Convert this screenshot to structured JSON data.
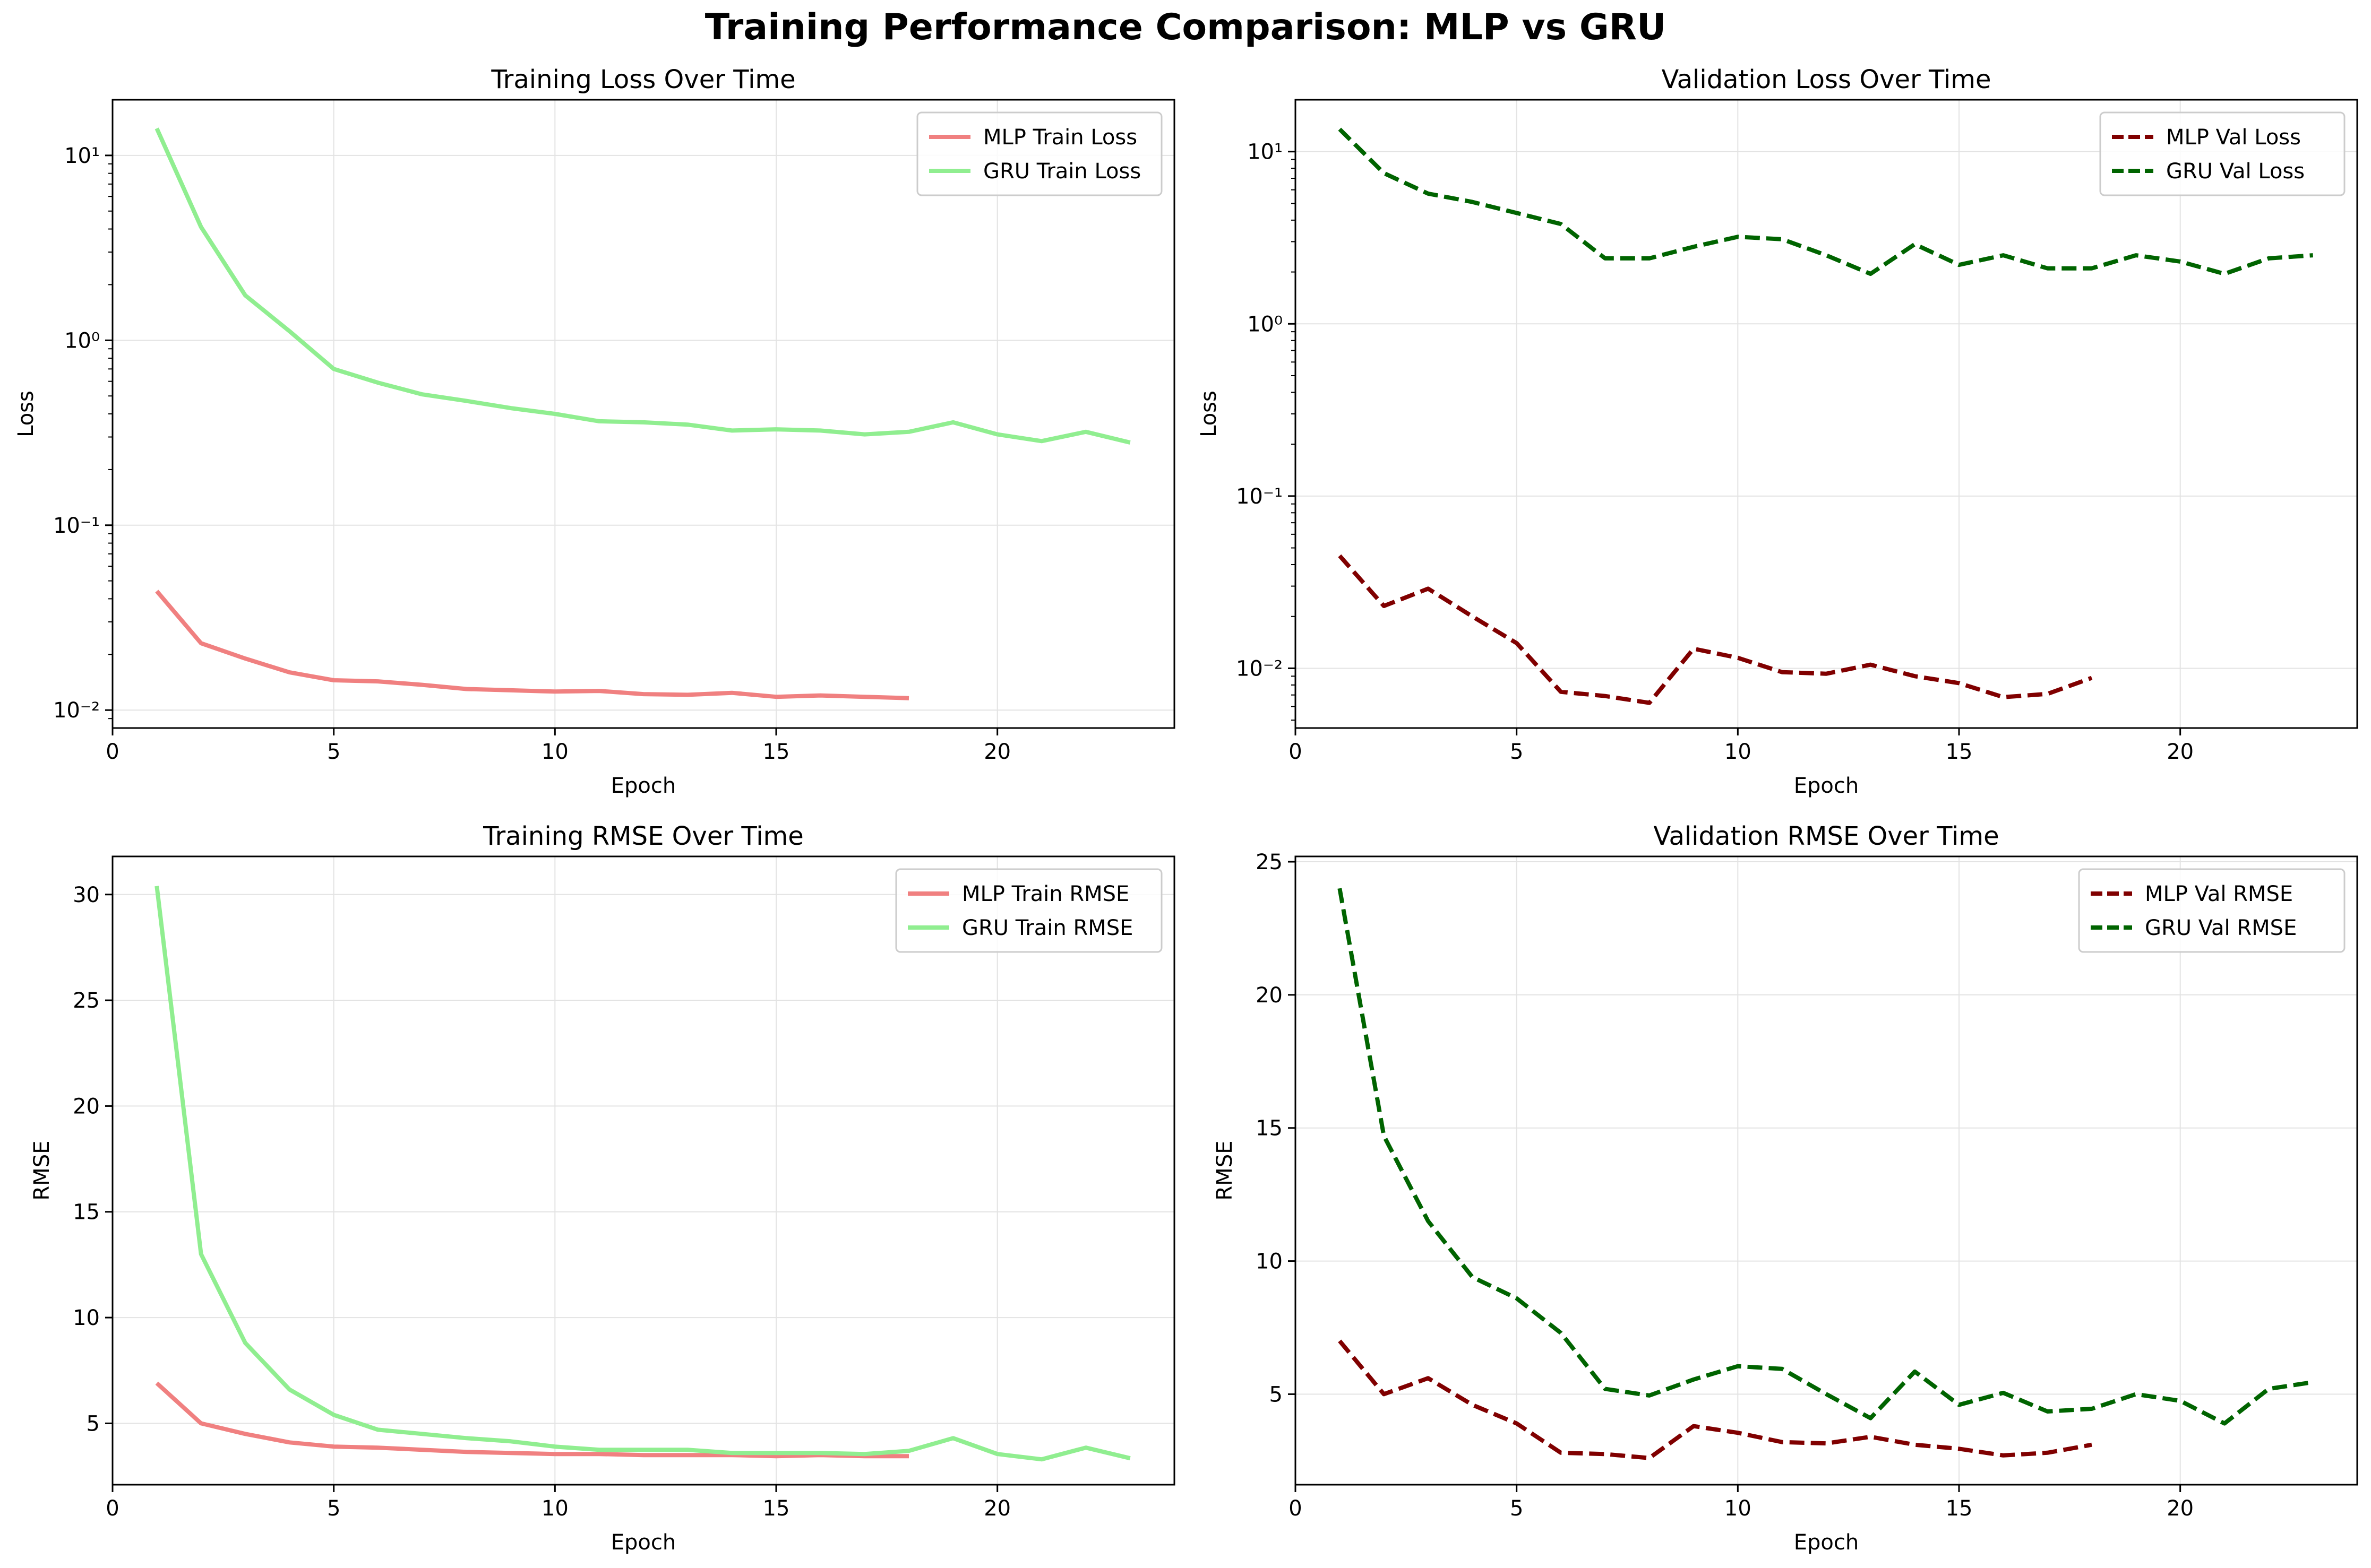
{
  "figure": {
    "suptitle": "Training Performance Comparison: MLP vs GRU",
    "colors": {
      "mlp_train": "#f08080",
      "gru_train": "#90ee90",
      "mlp_val": "#800000",
      "gru_val": "#006400",
      "grid": "#e6e6e6"
    }
  },
  "chart_data": [
    {
      "type": "line",
      "title": "Training Loss Over Time",
      "xlabel": "Epoch",
      "ylabel": "Loss",
      "yscale": "log",
      "xlim": [
        0,
        24
      ],
      "ylim": [
        0.008,
        20
      ],
      "xticks": [
        0,
        5,
        10,
        15,
        20
      ],
      "yticks": [
        0.01,
        0.1,
        1,
        10
      ],
      "ytick_labels": [
        "10⁻²",
        "10⁻¹",
        "10⁰",
        "10¹"
      ],
      "grid": true,
      "legend": "top-right",
      "series": [
        {
          "name": "MLP Train Loss",
          "color": "#f08080",
          "style": "solid",
          "x": [
            1,
            2,
            3,
            4,
            5,
            6,
            7,
            8,
            9,
            10,
            11,
            12,
            13,
            14,
            15,
            16,
            17,
            18
          ],
          "y": [
            0.044,
            0.023,
            0.019,
            0.016,
            0.0145,
            0.0143,
            0.0137,
            0.013,
            0.0128,
            0.0126,
            0.0127,
            0.0122,
            0.0121,
            0.0124,
            0.0118,
            0.012,
            0.0118,
            0.0116
          ]
        },
        {
          "name": "GRU Train Loss",
          "color": "#90ee90",
          "style": "solid",
          "x": [
            1,
            2,
            3,
            4,
            5,
            6,
            7,
            8,
            9,
            10,
            11,
            12,
            13,
            14,
            15,
            16,
            17,
            18,
            19,
            20,
            21,
            22,
            23
          ],
          "y": [
            14,
            4.1,
            1.75,
            1.12,
            0.7,
            0.59,
            0.51,
            0.47,
            0.43,
            0.4,
            0.365,
            0.36,
            0.35,
            0.325,
            0.33,
            0.325,
            0.31,
            0.32,
            0.36,
            0.31,
            0.285,
            0.32,
            0.28
          ]
        }
      ]
    },
    {
      "type": "line",
      "title": "Validation Loss Over Time",
      "xlabel": "Epoch",
      "ylabel": "Loss",
      "yscale": "log",
      "xlim": [
        0,
        24
      ],
      "ylim": [
        0.0045,
        20
      ],
      "xticks": [
        0,
        5,
        10,
        15,
        20
      ],
      "yticks": [
        0.01,
        0.1,
        1,
        10
      ],
      "ytick_labels": [
        "10⁻²",
        "10⁻¹",
        "10⁰",
        "10¹"
      ],
      "grid": true,
      "legend": "top-right",
      "series": [
        {
          "name": "MLP Val Loss",
          "color": "#800000",
          "style": "dashed",
          "x": [
            1,
            2,
            3,
            4,
            5,
            6,
            7,
            8,
            9,
            10,
            11,
            12,
            13,
            14,
            15,
            16,
            17,
            18
          ],
          "y": [
            0.045,
            0.023,
            0.029,
            0.02,
            0.014,
            0.0073,
            0.0069,
            0.0063,
            0.013,
            0.0115,
            0.0095,
            0.0093,
            0.0105,
            0.009,
            0.0082,
            0.0068,
            0.0071,
            0.0088
          ]
        },
        {
          "name": "GRU Val Loss",
          "color": "#006400",
          "style": "dashed",
          "x": [
            1,
            2,
            3,
            4,
            5,
            6,
            7,
            8,
            9,
            10,
            11,
            12,
            13,
            14,
            15,
            16,
            17,
            18,
            19,
            20,
            21,
            22,
            23
          ],
          "y": [
            13.5,
            7.5,
            5.7,
            5.1,
            4.4,
            3.8,
            2.4,
            2.4,
            2.8,
            3.2,
            3.1,
            2.5,
            1.95,
            2.9,
            2.2,
            2.5,
            2.1,
            2.1,
            2.5,
            2.3,
            1.95,
            2.4,
            2.5
          ]
        }
      ]
    },
    {
      "type": "line",
      "title": "Training RMSE Over Time",
      "xlabel": "Epoch",
      "ylabel": "RMSE",
      "yscale": "linear",
      "xlim": [
        0,
        24
      ],
      "ylim": [
        2.1,
        31.8
      ],
      "xticks": [
        0,
        5,
        10,
        15,
        20
      ],
      "yticks": [
        5,
        10,
        15,
        20,
        25,
        30
      ],
      "ytick_labels": [
        "5",
        "10",
        "15",
        "20",
        "25",
        "30"
      ],
      "grid": true,
      "legend": "top-right",
      "series": [
        {
          "name": "MLP Train RMSE",
          "color": "#f08080",
          "style": "solid",
          "x": [
            1,
            2,
            3,
            4,
            5,
            6,
            7,
            8,
            9,
            10,
            11,
            12,
            13,
            14,
            15,
            16,
            17,
            18
          ],
          "y": [
            6.9,
            5.0,
            4.5,
            4.1,
            3.9,
            3.85,
            3.75,
            3.65,
            3.6,
            3.55,
            3.55,
            3.5,
            3.5,
            3.5,
            3.45,
            3.5,
            3.45,
            3.45
          ]
        },
        {
          "name": "GRU Train RMSE",
          "color": "#90ee90",
          "style": "solid",
          "x": [
            1,
            2,
            3,
            4,
            5,
            6,
            7,
            8,
            9,
            10,
            11,
            12,
            13,
            14,
            15,
            16,
            17,
            18,
            19,
            20,
            21,
            22,
            23
          ],
          "y": [
            30.4,
            13.0,
            8.8,
            6.6,
            5.4,
            4.7,
            4.5,
            4.3,
            4.15,
            3.9,
            3.75,
            3.75,
            3.75,
            3.6,
            3.6,
            3.6,
            3.55,
            3.7,
            4.3,
            3.55,
            3.3,
            3.85,
            3.35
          ]
        }
      ]
    },
    {
      "type": "line",
      "title": "Validation RMSE Over Time",
      "xlabel": "Epoch",
      "ylabel": "RMSE",
      "yscale": "linear",
      "xlim": [
        0,
        24
      ],
      "ylim": [
        1.6,
        25.2
      ],
      "xticks": [
        0,
        5,
        10,
        15,
        20
      ],
      "yticks": [
        5,
        10,
        15,
        20,
        25
      ],
      "ytick_labels": [
        "5",
        "10",
        "15",
        "20",
        "25"
      ],
      "grid": true,
      "legend": "top-right",
      "series": [
        {
          "name": "MLP Val RMSE",
          "color": "#800000",
          "style": "dashed",
          "x": [
            1,
            2,
            3,
            4,
            5,
            6,
            7,
            8,
            9,
            10,
            11,
            12,
            13,
            14,
            15,
            16,
            17,
            18
          ],
          "y": [
            7.0,
            5.0,
            5.6,
            4.6,
            3.9,
            2.8,
            2.75,
            2.6,
            3.8,
            3.55,
            3.2,
            3.15,
            3.4,
            3.1,
            2.95,
            2.7,
            2.8,
            3.1
          ]
        },
        {
          "name": "GRU Val RMSE",
          "color": "#006400",
          "style": "dashed",
          "x": [
            1,
            2,
            3,
            4,
            5,
            6,
            7,
            8,
            9,
            10,
            11,
            12,
            13,
            14,
            15,
            16,
            17,
            18,
            19,
            20,
            21,
            22,
            23
          ],
          "y": [
            24.0,
            14.7,
            11.5,
            9.4,
            8.6,
            7.3,
            5.2,
            4.95,
            5.55,
            6.05,
            5.95,
            5.0,
            4.1,
            5.85,
            4.6,
            5.05,
            4.35,
            4.45,
            5.0,
            4.75,
            3.9,
            5.2,
            5.45
          ]
        }
      ]
    }
  ]
}
